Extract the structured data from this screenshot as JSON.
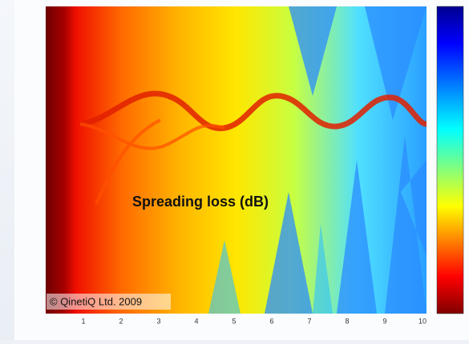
{
  "figure": {
    "overlay_label": "Spreading loss (dB)",
    "copyright": "© QinetiQ Ltd. 2009",
    "x_ticks": [
      "1",
      "2",
      "3",
      "4",
      "5",
      "6",
      "7",
      "8",
      "9",
      "10"
    ]
  }
}
